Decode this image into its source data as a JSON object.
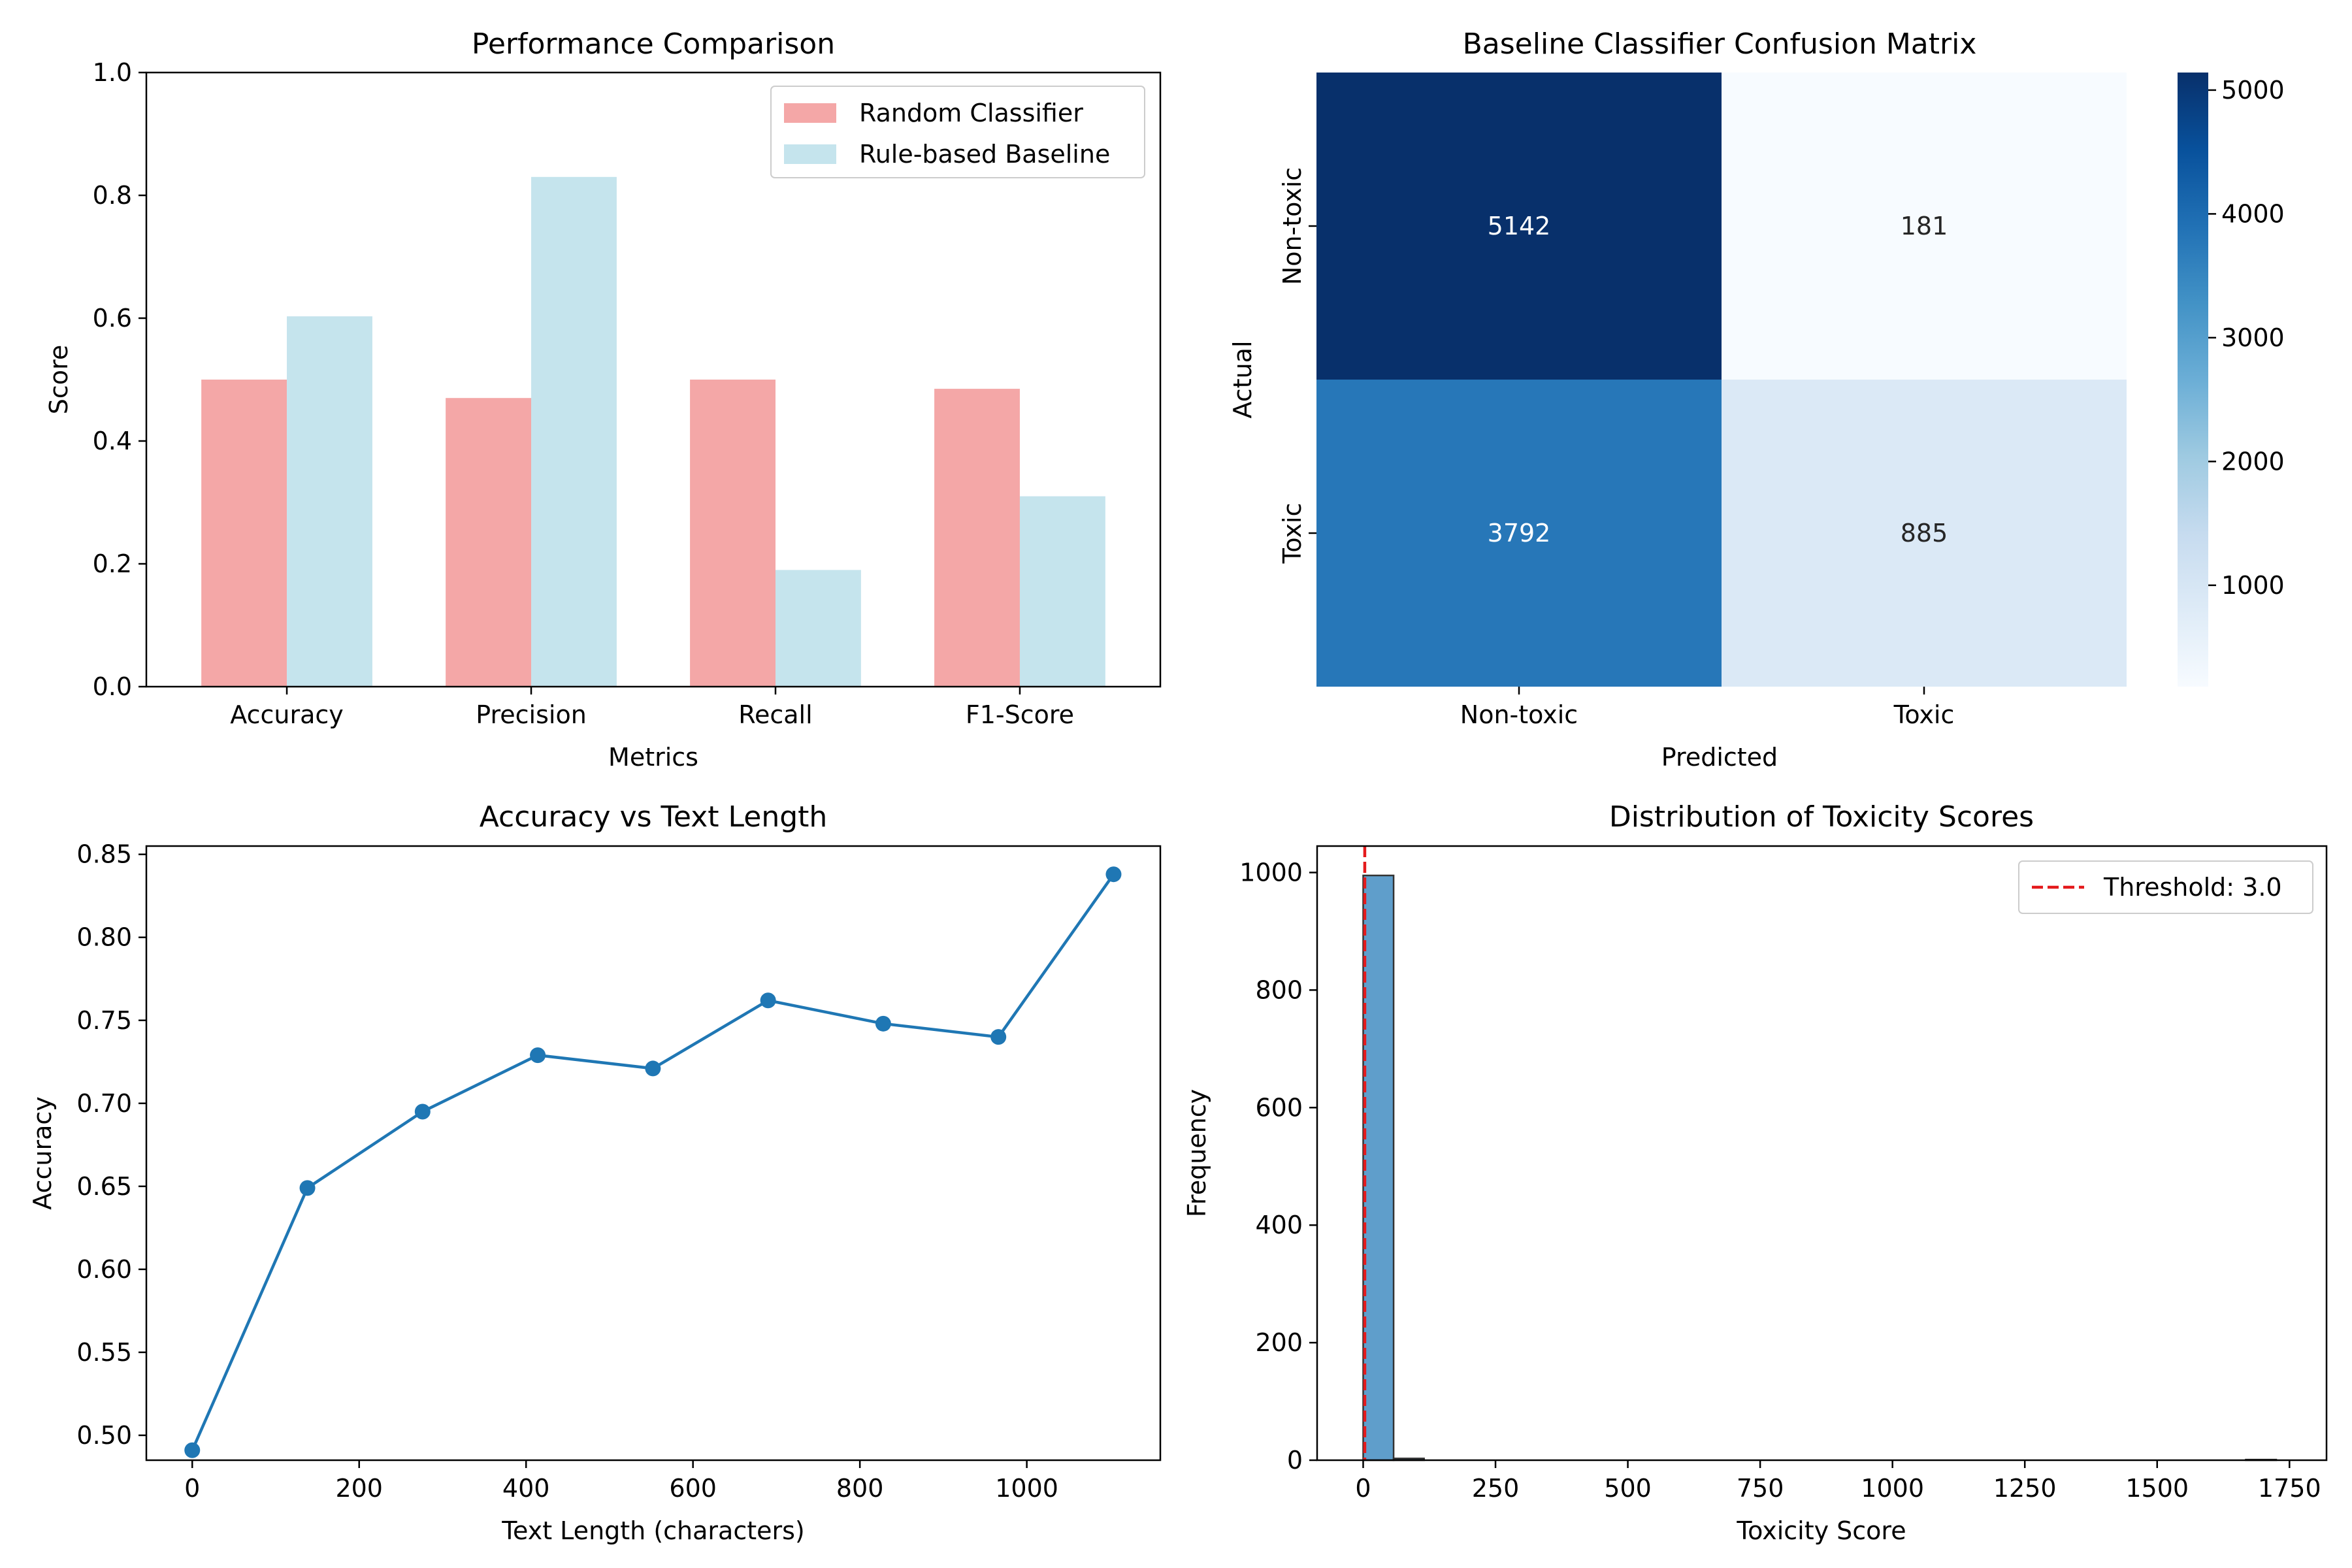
{
  "chart_data": [
    {
      "type": "bar",
      "title": "Performance Comparison",
      "xlabel": "Metrics",
      "ylabel": "Score",
      "ylim": [
        0,
        1.0
      ],
      "yticks": [
        "0.0",
        "0.2",
        "0.4",
        "0.6",
        "0.8",
        "1.0"
      ],
      "categories": [
        "Accuracy",
        "Precision",
        "Recall",
        "F1-Score"
      ],
      "series": [
        {
          "name": "Random Classifier",
          "color": "#f4a7a7",
          "values": [
            0.5,
            0.47,
            0.5,
            0.485
          ]
        },
        {
          "name": "Rule-based Baseline",
          "color": "#c5e4ed",
          "values": [
            0.603,
            0.83,
            0.19,
            0.31
          ]
        }
      ],
      "legend": "top-right",
      "grid": false
    },
    {
      "type": "heatmap",
      "title": "Baseline Classifier Confusion Matrix",
      "xlabel": "Predicted",
      "ylabel": "Actual",
      "x_categories": [
        "Non-toxic",
        "Toxic"
      ],
      "y_categories": [
        "Non-toxic",
        "Toxic"
      ],
      "values": [
        [
          5142,
          181
        ],
        [
          3792,
          885
        ]
      ],
      "cell_labels": [
        [
          "5142",
          "181"
        ],
        [
          "3792",
          "885"
        ]
      ],
      "colormap": "Blues",
      "colorbar_range": [
        181,
        5142
      ],
      "colorbar_ticks": [
        "1000",
        "2000",
        "3000",
        "4000",
        "5000"
      ]
    },
    {
      "type": "line",
      "title": "Accuracy vs Text Length",
      "xlabel": "Text Length (characters)",
      "ylabel": "Accuracy",
      "xlim": [
        -55,
        1160
      ],
      "ylim": [
        0.485,
        0.855
      ],
      "xticks": [
        "0",
        "200",
        "400",
        "600",
        "800",
        "1000"
      ],
      "yticks": [
        "0.50",
        "0.55",
        "0.60",
        "0.65",
        "0.70",
        "0.75",
        "0.80",
        "0.85"
      ],
      "x": [
        0,
        138,
        276,
        414,
        552,
        690,
        828,
        966,
        1104
      ],
      "y": [
        0.491,
        0.649,
        0.695,
        0.729,
        0.721,
        0.762,
        0.748,
        0.74,
        0.838
      ],
      "color": "#1f77b4",
      "marker": "circle",
      "grid": false
    },
    {
      "type": "histogram",
      "title": "Distribution of Toxicity Scores",
      "xlabel": "Toxicity Score",
      "ylabel": "Frequency",
      "xlim": [
        -87,
        1820
      ],
      "ylim": [
        0,
        1045
      ],
      "xticks": [
        "0",
        "250",
        "500",
        "750",
        "1000",
        "1250",
        "1500",
        "1750"
      ],
      "yticks": [
        "0",
        "200",
        "400",
        "600",
        "800",
        "1000"
      ],
      "bin_width": 57.5,
      "bins_start": 0,
      "counts": [
        995,
        3,
        0,
        0,
        0,
        0,
        0,
        0,
        0,
        0,
        0,
        0,
        0,
        0,
        0,
        0,
        0,
        0,
        0,
        0,
        0,
        0,
        0,
        0,
        0,
        0,
        0,
        0,
        0,
        1
      ],
      "bar_color": "#5f9ecb",
      "edge_color": "#333333",
      "threshold": {
        "value": 3.0,
        "label": "Threshold: 3.0",
        "color": "#e41a1c",
        "style": "dashed"
      },
      "legend": "top-right"
    }
  ]
}
